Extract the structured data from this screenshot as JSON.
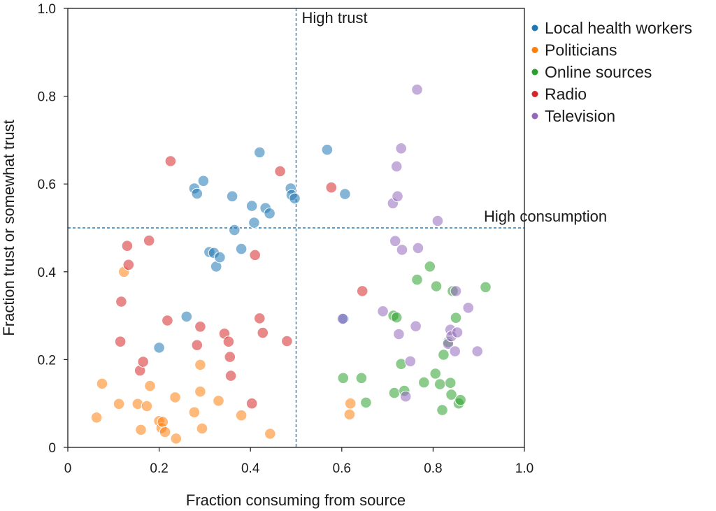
{
  "chart_data": {
    "type": "scatter",
    "xlabel": "Fraction consuming from source",
    "ylabel": "Fraction trust or somewhat trust",
    "xlim": [
      0,
      1.0
    ],
    "ylim": [
      0,
      1.0
    ],
    "x_ticks": [
      0,
      0.2,
      0.4,
      0.6,
      0.8,
      1.0
    ],
    "x_tick_labels": [
      "0",
      "0.2",
      "0.4",
      "0.6",
      "0.8",
      "1.0"
    ],
    "y_ticks": [
      0,
      0.2,
      0.4,
      0.6,
      0.8,
      1.0
    ],
    "y_tick_labels": [
      "0",
      "0.2",
      "0.4",
      "0.6",
      "0.8",
      "1.0"
    ],
    "grid": false,
    "legend_position": "top-right outside",
    "reference_lines": [
      {
        "orientation": "vertical",
        "value": 0.5,
        "label": "High trust",
        "style": "dashed",
        "color": "#2b7bb9"
      },
      {
        "orientation": "horizontal",
        "value": 0.5,
        "label": "High consumption",
        "style": "dashed",
        "color": "#2b7bb9"
      }
    ],
    "series": [
      {
        "name": "Local health workers",
        "color": "#1f77b4",
        "points": [
          [
            0.2,
            0.227
          ],
          [
            0.26,
            0.298
          ],
          [
            0.277,
            0.59
          ],
          [
            0.283,
            0.578
          ],
          [
            0.297,
            0.607
          ],
          [
            0.31,
            0.445
          ],
          [
            0.32,
            0.443
          ],
          [
            0.325,
            0.412
          ],
          [
            0.333,
            0.433
          ],
          [
            0.36,
            0.572
          ],
          [
            0.365,
            0.495
          ],
          [
            0.38,
            0.452
          ],
          [
            0.403,
            0.55
          ],
          [
            0.408,
            0.512
          ],
          [
            0.42,
            0.672
          ],
          [
            0.433,
            0.545
          ],
          [
            0.442,
            0.533
          ],
          [
            0.488,
            0.59
          ],
          [
            0.49,
            0.575
          ],
          [
            0.497,
            0.567
          ],
          [
            0.568,
            0.678
          ],
          [
            0.607,
            0.577
          ],
          [
            0.604,
            0.293
          ]
        ]
      },
      {
        "name": "Politicians",
        "color": "#ff7f0e",
        "points": [
          [
            0.063,
            0.068
          ],
          [
            0.075,
            0.145
          ],
          [
            0.112,
            0.099
          ],
          [
            0.123,
            0.4
          ],
          [
            0.153,
            0.099
          ],
          [
            0.16,
            0.04
          ],
          [
            0.173,
            0.094
          ],
          [
            0.18,
            0.14
          ],
          [
            0.2,
            0.06
          ],
          [
            0.205,
            0.044
          ],
          [
            0.208,
            0.058
          ],
          [
            0.213,
            0.035
          ],
          [
            0.235,
            0.114
          ],
          [
            0.237,
            0.02
          ],
          [
            0.277,
            0.08
          ],
          [
            0.29,
            0.127
          ],
          [
            0.29,
            0.188
          ],
          [
            0.294,
            0.043
          ],
          [
            0.33,
            0.106
          ],
          [
            0.38,
            0.073
          ],
          [
            0.443,
            0.031
          ],
          [
            0.617,
            0.075
          ],
          [
            0.619,
            0.1
          ]
        ]
      },
      {
        "name": "Online sources",
        "color": "#2ca02c",
        "points": [
          [
            0.603,
            0.158
          ],
          [
            0.643,
            0.158
          ],
          [
            0.653,
            0.102
          ],
          [
            0.713,
            0.3
          ],
          [
            0.715,
            0.124
          ],
          [
            0.72,
            0.296
          ],
          [
            0.73,
            0.19
          ],
          [
            0.737,
            0.129
          ],
          [
            0.765,
            0.382
          ],
          [
            0.78,
            0.148
          ],
          [
            0.793,
            0.412
          ],
          [
            0.805,
            0.168
          ],
          [
            0.807,
            0.367
          ],
          [
            0.815,
            0.144
          ],
          [
            0.82,
            0.085
          ],
          [
            0.823,
            0.211
          ],
          [
            0.833,
            0.24
          ],
          [
            0.838,
            0.147
          ],
          [
            0.84,
            0.12
          ],
          [
            0.843,
            0.356
          ],
          [
            0.85,
            0.295
          ],
          [
            0.856,
            0.1
          ],
          [
            0.86,
            0.108
          ],
          [
            0.915,
            0.365
          ]
        ]
      },
      {
        "name": "Radio",
        "color": "#d62728",
        "points": [
          [
            0.115,
            0.241
          ],
          [
            0.117,
            0.332
          ],
          [
            0.13,
            0.459
          ],
          [
            0.133,
            0.416
          ],
          [
            0.158,
            0.175
          ],
          [
            0.165,
            0.195
          ],
          [
            0.178,
            0.471
          ],
          [
            0.218,
            0.289
          ],
          [
            0.225,
            0.652
          ],
          [
            0.283,
            0.233
          ],
          [
            0.29,
            0.275
          ],
          [
            0.343,
            0.259
          ],
          [
            0.352,
            0.241
          ],
          [
            0.355,
            0.206
          ],
          [
            0.357,
            0.163
          ],
          [
            0.403,
            0.1
          ],
          [
            0.41,
            0.438
          ],
          [
            0.42,
            0.294
          ],
          [
            0.427,
            0.261
          ],
          [
            0.465,
            0.629
          ],
          [
            0.48,
            0.242
          ],
          [
            0.577,
            0.592
          ],
          [
            0.645,
            0.356
          ]
        ]
      },
      {
        "name": "Television",
        "color": "#9467bd",
        "points": [
          [
            0.602,
            0.293
          ],
          [
            0.69,
            0.31
          ],
          [
            0.712,
            0.556
          ],
          [
            0.717,
            0.47
          ],
          [
            0.72,
            0.64
          ],
          [
            0.722,
            0.572
          ],
          [
            0.725,
            0.258
          ],
          [
            0.73,
            0.681
          ],
          [
            0.732,
            0.45
          ],
          [
            0.74,
            0.116
          ],
          [
            0.75,
            0.196
          ],
          [
            0.762,
            0.276
          ],
          [
            0.765,
            0.815
          ],
          [
            0.767,
            0.454
          ],
          [
            0.81,
            0.516
          ],
          [
            0.833,
            0.236
          ],
          [
            0.838,
            0.268
          ],
          [
            0.84,
            0.253
          ],
          [
            0.848,
            0.219
          ],
          [
            0.85,
            0.356
          ],
          [
            0.853,
            0.262
          ],
          [
            0.877,
            0.318
          ],
          [
            0.897,
            0.219
          ]
        ]
      }
    ]
  }
}
